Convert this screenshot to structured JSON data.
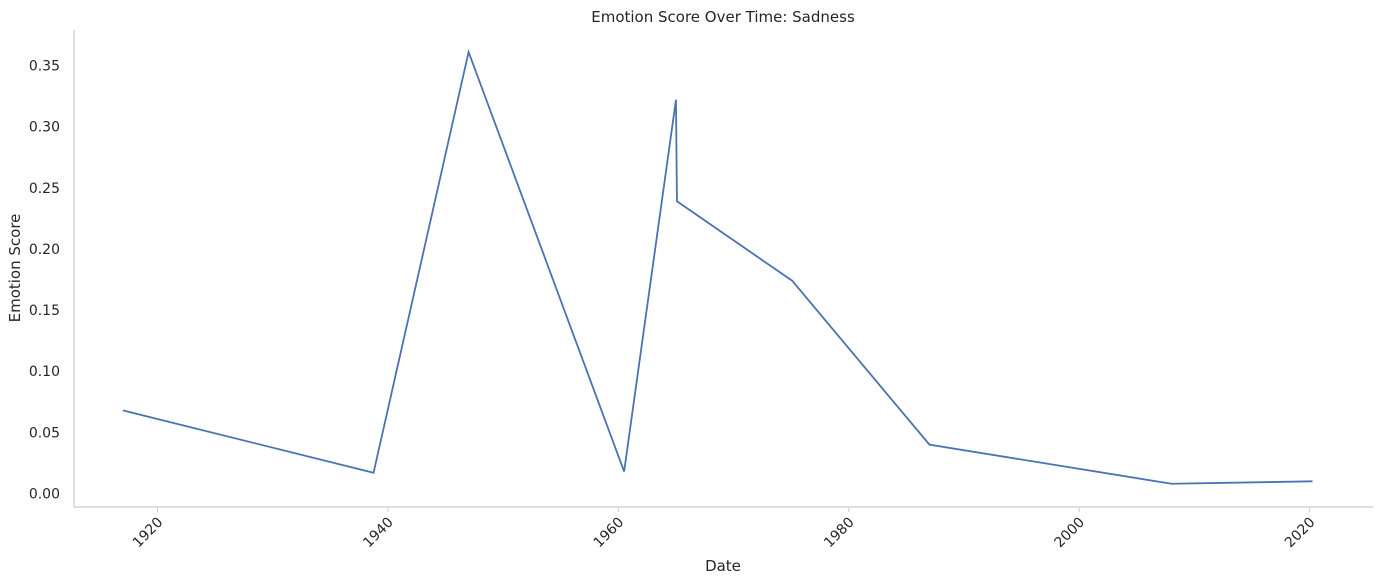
{
  "chart_data": {
    "type": "line",
    "title": "Emotion Score Over Time: Sadness",
    "xlabel": "Date",
    "ylabel": "Emotion Score",
    "x_ticks": [
      "1920",
      "1940",
      "1960",
      "1980",
      "2000",
      "2020"
    ],
    "y_ticks": [
      "0.00",
      "0.05",
      "0.10",
      "0.15",
      "0.20",
      "0.25",
      "0.30",
      "0.35"
    ],
    "xlim": [
      "1912-10-01",
      "2025-07-01"
    ],
    "ylim": [
      -0.011,
      0.379
    ],
    "grid": false,
    "legend": "none",
    "series": [
      {
        "color": "#4c72b0",
        "x": [
          "1917-01-01",
          "1938-10-01",
          "1947-01-01",
          "1960-07-01",
          "1965-01-01",
          "1965-02-01",
          "1975-02-01",
          "1987-01-01",
          "2008-01-01",
          "2020-04-01"
        ],
        "y": [
          0.068,
          0.017,
          0.361,
          0.018,
          0.322,
          0.239,
          0.174,
          0.04,
          0.008,
          0.01
        ]
      }
    ]
  }
}
